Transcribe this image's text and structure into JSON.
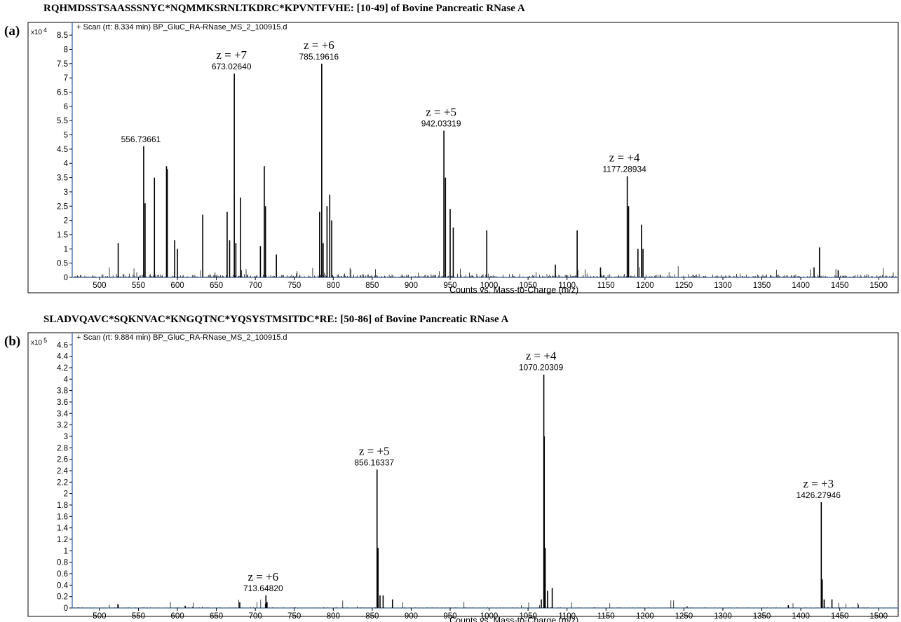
{
  "panels": [
    {
      "tag": "(a)",
      "title": "RQHMDSSTSAASSSNYC*NQMMKSRNLTKDRC*KPVNTFVHE: [10-49] of Bovine Pancreatic RNase  A",
      "scale_prefix": "x10",
      "scale_exp": "4",
      "scan_label": "+ Scan (rt: 8.334 min) BP_GluC_RA-RNase_MS_2_100915.d",
      "xlabel": "Counts vs. Mass-to-Charge (m/z)"
    },
    {
      "tag": "(b)",
      "title": "SLADVQAVC*SQKNVAC*KNGQTNC*YQSYSTMSITDC*RE: [50-86] of Bovine Pancreatic RNase A",
      "scale_prefix": "x10",
      "scale_exp": "5",
      "scan_label": "+ Scan (rt: 9.884 min) BP_GluC_RA-RNase_MS_2_100915.d",
      "xlabel": "Counts vs. Mass-to-Charge (m/z)"
    }
  ],
  "chart_data": [
    {
      "type": "bar",
      "title": "RQHMDSSTSAASSSNYC*NQMMKSRNLTKDRC*KPVNTFVHE: [10-49] of Bovine Pancreatic RNase  A",
      "xlabel": "Counts vs. Mass-to-Charge (m/z)",
      "ylabel": "x10 4",
      "xlim": [
        465,
        1525
      ],
      "ylim": [
        0,
        8.7
      ],
      "xticks": [
        "500",
        "550",
        "600",
        "650",
        "700",
        "750",
        "800",
        "850",
        "900",
        "950",
        "1000",
        "1050",
        "1100",
        "1150",
        "1200",
        "1250",
        "1300",
        "1350",
        "1400",
        "1450",
        "1500"
      ],
      "yticks": [
        "0",
        "0.5",
        "1",
        "1.5",
        "2",
        "2.5",
        "3",
        "3.5",
        "4",
        "4.5",
        "5",
        "5.5",
        "6",
        "6.5",
        "7",
        "7.5",
        "8",
        "8.5"
      ],
      "grid": false,
      "peaks": [
        {
          "x": 524,
          "y": 1.2
        },
        {
          "x": 556.7,
          "y": 4.6
        },
        {
          "x": 558.5,
          "y": 2.6
        },
        {
          "x": 570.5,
          "y": 3.5
        },
        {
          "x": 586,
          "y": 3.9
        },
        {
          "x": 587,
          "y": 3.8
        },
        {
          "x": 596.5,
          "y": 1.3
        },
        {
          "x": 600,
          "y": 1.0
        },
        {
          "x": 632.5,
          "y": 2.2
        },
        {
          "x": 663.8,
          "y": 2.3
        },
        {
          "x": 667,
          "y": 1.3
        },
        {
          "x": 673.0,
          "y": 7.15
        },
        {
          "x": 675,
          "y": 1.2
        },
        {
          "x": 681,
          "y": 2.8
        },
        {
          "x": 706.5,
          "y": 1.1
        },
        {
          "x": 711.5,
          "y": 3.9
        },
        {
          "x": 713,
          "y": 2.5
        },
        {
          "x": 727,
          "y": 0.8
        },
        {
          "x": 782.5,
          "y": 2.3
        },
        {
          "x": 785.2,
          "y": 7.5
        },
        {
          "x": 787,
          "y": 1.2
        },
        {
          "x": 792,
          "y": 2.5
        },
        {
          "x": 795.5,
          "y": 2.9
        },
        {
          "x": 798,
          "y": 2.0
        },
        {
          "x": 942.0,
          "y": 5.15
        },
        {
          "x": 944,
          "y": 3.5
        },
        {
          "x": 950,
          "y": 2.4
        },
        {
          "x": 954,
          "y": 1.75
        },
        {
          "x": 997,
          "y": 1.65
        },
        {
          "x": 1113,
          "y": 1.65
        },
        {
          "x": 1085,
          "y": 0.45
        },
        {
          "x": 1177.3,
          "y": 3.55
        },
        {
          "x": 1179,
          "y": 2.5
        },
        {
          "x": 1191,
          "y": 1.0
        },
        {
          "x": 1195.5,
          "y": 1.85
        },
        {
          "x": 1197.5,
          "y": 1.0
        },
        {
          "x": 1143,
          "y": 0.35
        },
        {
          "x": 1417,
          "y": 0.35
        },
        {
          "x": 1424,
          "y": 1.05
        },
        {
          "x": 1448,
          "y": 0.25
        }
      ],
      "annotations": [
        {
          "x": 556.73661,
          "y": 4.6,
          "charge": "",
          "mz": "556.73661"
        },
        {
          "x": 673.0264,
          "y": 7.15,
          "charge": "z = +7",
          "mz": "673.02640"
        },
        {
          "x": 785.19616,
          "y": 7.5,
          "charge": "z = +6",
          "mz": "785.19616"
        },
        {
          "x": 942.03319,
          "y": 5.15,
          "charge": "z = +5",
          "mz": "942.03319"
        },
        {
          "x": 1177.28934,
          "y": 3.55,
          "charge": "z = +4",
          "mz": "1177.28934"
        }
      ]
    },
    {
      "type": "bar",
      "title": "SLADVQAVC*SQKNVAC*KNGQTNC*YQSYSTMSITDC*RE: [50-86] of Bovine Pancreatic RNase A",
      "xlabel": "Counts vs. Mass-to-Charge (m/z)",
      "ylabel": "x10 5",
      "xlim": [
        465,
        1525
      ],
      "ylim": [
        0,
        4.75
      ],
      "xticks": [
        "500",
        "550",
        "600",
        "650",
        "700",
        "750",
        "800",
        "850",
        "900",
        "950",
        "1000",
        "1050",
        "1100",
        "1150",
        "1200",
        "1250",
        "1300",
        "1350",
        "1400",
        "1450",
        "1500"
      ],
      "yticks": [
        "0",
        "0.2",
        "0.4",
        "0.6",
        "0.8",
        "1",
        "1.2",
        "1.4",
        "1.6",
        "1.8",
        "2",
        "2.2",
        "2.4",
        "2.6",
        "2.8",
        "3",
        "3.2",
        "3.4",
        "3.6",
        "3.8",
        "4",
        "4.2",
        "4.4",
        "4.6"
      ],
      "grid": false,
      "peaks": [
        {
          "x": 524,
          "y": 0.06
        },
        {
          "x": 610,
          "y": 0.04
        },
        {
          "x": 680,
          "y": 0.1
        },
        {
          "x": 713.6,
          "y": 0.22
        },
        {
          "x": 715,
          "y": 0.1
        },
        {
          "x": 856.2,
          "y": 2.42
        },
        {
          "x": 857.5,
          "y": 1.05
        },
        {
          "x": 860,
          "y": 0.22
        },
        {
          "x": 864,
          "y": 0.22
        },
        {
          "x": 876,
          "y": 0.15
        },
        {
          "x": 1067,
          "y": 0.15
        },
        {
          "x": 1070.2,
          "y": 4.08
        },
        {
          "x": 1070.8,
          "y": 3.0
        },
        {
          "x": 1072,
          "y": 1.05
        },
        {
          "x": 1075,
          "y": 0.3
        },
        {
          "x": 1081,
          "y": 0.35
        },
        {
          "x": 1426.3,
          "y": 1.85
        },
        {
          "x": 1427.5,
          "y": 0.5
        },
        {
          "x": 1430,
          "y": 0.15
        },
        {
          "x": 1440,
          "y": 0.15
        },
        {
          "x": 1384,
          "y": 0.05
        }
      ],
      "annotations": [
        {
          "x": 713.6482,
          "y": 0.22,
          "charge": "z = +6",
          "mz": "713.64820"
        },
        {
          "x": 856.16337,
          "y": 2.42,
          "charge": "z = +5",
          "mz": "856.16337"
        },
        {
          "x": 1070.20309,
          "y": 4.08,
          "charge": "z = +4",
          "mz": "1070.20309"
        },
        {
          "x": 1426.27946,
          "y": 1.85,
          "charge": "z = +3",
          "mz": "1426.27946"
        }
      ]
    }
  ]
}
